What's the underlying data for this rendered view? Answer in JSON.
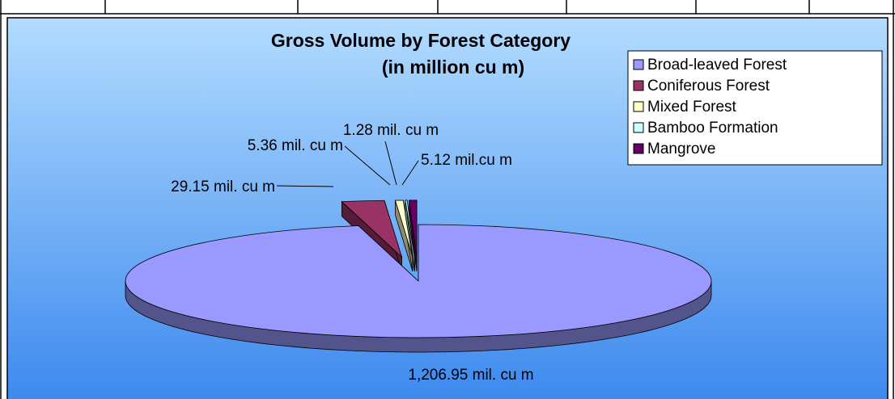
{
  "chart_data": {
    "type": "pie",
    "title": "Gross Volume by Forest Category",
    "subtitle": "(in million cu m)",
    "categories": [
      "Broad-leaved Forest",
      "Coniferous Forest",
      "Mixed Forest",
      "Bamboo Formation",
      "Mangrove"
    ],
    "values": [
      1206.95,
      29.15,
      5.36,
      1.28,
      5.12
    ],
    "value_labels": [
      "1,206.95 mil. cu m",
      "29.15 mil. cu m",
      "5.36 mil. cu m",
      "1.28 mil. cu m",
      "5.12 mil.cu m"
    ],
    "colors": [
      "#9999ff",
      "#993366",
      "#ffffcc",
      "#ccffff",
      "#660066"
    ],
    "legend": "top-right"
  }
}
